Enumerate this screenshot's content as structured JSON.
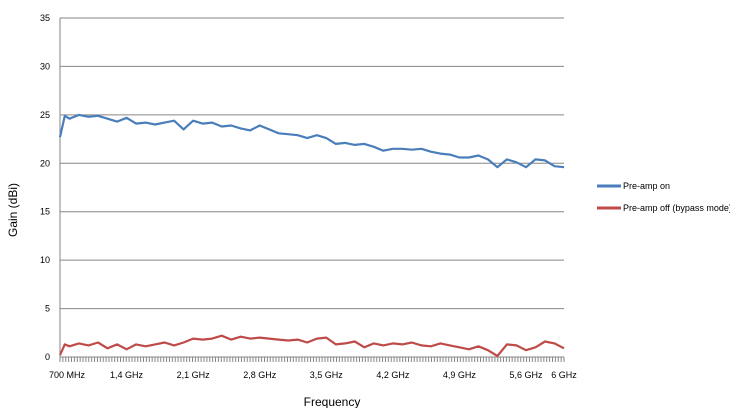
{
  "chart_data": {
    "type": "line",
    "title": "",
    "xlabel": "Frequency",
    "ylabel": "Gain (dBi)",
    "xlim": [
      0.7,
      6.0
    ],
    "ylim": [
      0,
      35
    ],
    "yticks": [
      0,
      5,
      10,
      15,
      20,
      25,
      30,
      35
    ],
    "xticks": [
      {
        "value": 0.7,
        "label": "700  MHz"
      },
      {
        "value": 1.4,
        "label": "1,4 GHz"
      },
      {
        "value": 2.1,
        "label": "2,1 GHz"
      },
      {
        "value": 2.8,
        "label": "2,8 GHz"
      },
      {
        "value": 3.5,
        "label": "3,5 GHz"
      },
      {
        "value": 4.2,
        "label": "4,2 GHz"
      },
      {
        "value": 4.9,
        "label": "4,9 GHz"
      },
      {
        "value": 5.6,
        "label": "5,6 GHz"
      },
      {
        "value": 6.0,
        "label": "6 GHz"
      }
    ],
    "grid": "horizontal",
    "legend_position": "right",
    "x": [
      0.7,
      0.75,
      0.8,
      0.9,
      1.0,
      1.1,
      1.2,
      1.3,
      1.4,
      1.5,
      1.6,
      1.7,
      1.8,
      1.9,
      2.0,
      2.1,
      2.2,
      2.3,
      2.4,
      2.5,
      2.6,
      2.7,
      2.8,
      2.9,
      3.0,
      3.1,
      3.2,
      3.3,
      3.4,
      3.5,
      3.6,
      3.7,
      3.8,
      3.9,
      4.0,
      4.1,
      4.2,
      4.3,
      4.4,
      4.5,
      4.6,
      4.7,
      4.8,
      4.9,
      5.0,
      5.1,
      5.2,
      5.3,
      5.4,
      5.5,
      5.6,
      5.7,
      5.8,
      5.9,
      6.0
    ],
    "series": [
      {
        "name": "Pre-amp on",
        "color": "#4a7ebb",
        "values": [
          22.7,
          24.9,
          24.6,
          25.0,
          24.8,
          24.9,
          24.6,
          24.3,
          24.7,
          24.1,
          24.2,
          24.0,
          24.2,
          24.4,
          23.5,
          24.4,
          24.1,
          24.2,
          23.8,
          23.9,
          23.6,
          23.4,
          23.9,
          23.5,
          23.1,
          23.0,
          22.9,
          22.6,
          22.9,
          22.6,
          22.0,
          22.1,
          21.9,
          22.0,
          21.7,
          21.3,
          21.5,
          21.5,
          21.4,
          21.5,
          21.2,
          21.0,
          20.9,
          20.6,
          20.6,
          20.8,
          20.4,
          19.6,
          20.4,
          20.1,
          19.6,
          20.4,
          20.3,
          19.7,
          19.6
        ]
      },
      {
        "name": "Pre-amp off (bypass mode)",
        "color": "#be4b48",
        "values": [
          0.2,
          1.3,
          1.1,
          1.4,
          1.2,
          1.5,
          0.9,
          1.3,
          0.8,
          1.3,
          1.1,
          1.3,
          1.5,
          1.2,
          1.5,
          1.9,
          1.8,
          1.9,
          2.2,
          1.8,
          2.1,
          1.9,
          2.0,
          1.9,
          1.8,
          1.7,
          1.8,
          1.5,
          1.9,
          2.0,
          1.3,
          1.4,
          1.6,
          1.0,
          1.4,
          1.2,
          1.4,
          1.3,
          1.5,
          1.2,
          1.1,
          1.4,
          1.2,
          1.0,
          0.8,
          1.1,
          0.7,
          0.1,
          1.3,
          1.2,
          0.7,
          1.0,
          1.6,
          1.4,
          0.9
        ]
      }
    ]
  }
}
